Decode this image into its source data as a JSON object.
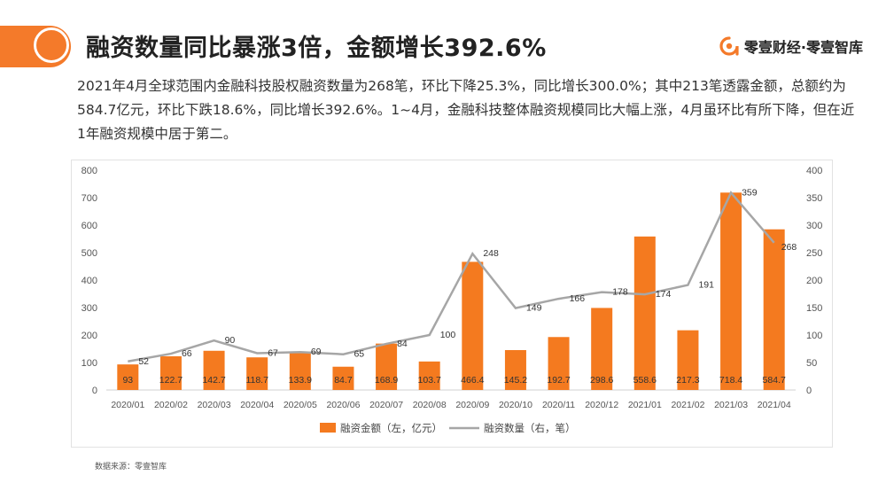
{
  "header": {
    "title": "融资数量同比暴涨3倍，金额增长392.6%",
    "brand": "零壹财经·零壹智库",
    "accent_color": "#f47a2a"
  },
  "summary": {
    "text": "2021年4月全球范围内金融科技股权融资数量为268笔，环比下降25.3%，同比增长300.0%；其中213笔透露金额，总额约为584.7亿元，环比下跌18.6%，同比增长392.6%。1~4月，金融科技整体融资规模同比大幅上涨，4月虽环比有所下降，但在近1年融资规模中居于第二。"
  },
  "source": "数据来源：零壹智库",
  "chart_data": {
    "type": "bar",
    "categories": [
      "2020/01",
      "2020/02",
      "2020/03",
      "2020/04",
      "2020/05",
      "2020/06",
      "2020/07",
      "2020/08",
      "2020/09",
      "2020/10",
      "2020/11",
      "2020/12",
      "2021/01",
      "2021/02",
      "2021/03",
      "2021/04"
    ],
    "series": [
      {
        "name": "融资金额（左，亿元）",
        "type": "bar",
        "axis": "left",
        "color": "#f47a1f",
        "values": [
          93,
          122.7,
          142.7,
          118.7,
          133.9,
          84.7,
          168.9,
          103.7,
          466.4,
          145.2,
          192.7,
          298.6,
          558.6,
          217.3,
          718.4,
          584.7
        ]
      },
      {
        "name": "融资数量（右，笔）",
        "type": "line",
        "axis": "right",
        "color": "#a6a6a6",
        "values": [
          52,
          66,
          90,
          67,
          69,
          65,
          84,
          100,
          248,
          149,
          166,
          178,
          174,
          191,
          359,
          268
        ]
      }
    ],
    "left_ticks": [
      "0",
      "100",
      "200",
      "300",
      "400",
      "500",
      "600",
      "700",
      "800"
    ],
    "right_ticks": [
      "0",
      "50",
      "100",
      "150",
      "200",
      "250",
      "300",
      "350",
      "400"
    ],
    "ylim_left": [
      0,
      800
    ],
    "ylim_right": [
      0,
      400
    ],
    "legend_position": "bottom-center",
    "grid": false
  }
}
